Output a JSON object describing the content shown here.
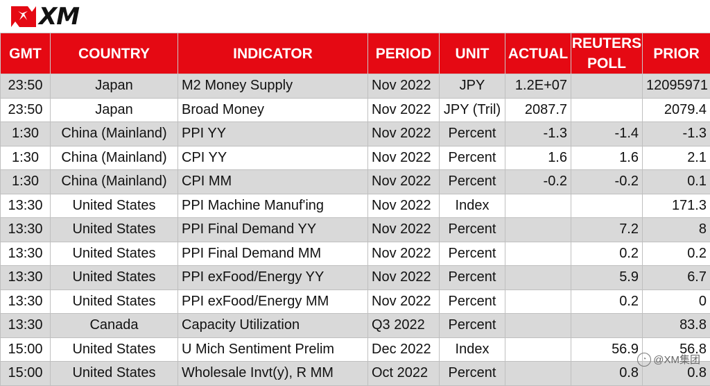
{
  "brand": {
    "logo_text": "XM",
    "logo_color": "#e50913"
  },
  "table": {
    "header_color": "#e50913",
    "shade_color": "#d9d9d9",
    "headers": {
      "gmt": "GMT",
      "country": "COUNTRY",
      "indicator": "INDICATOR",
      "period": "PERIOD",
      "unit": "UNIT",
      "actual": "ACTUAL",
      "reuters_poll_line1": "REUTERS",
      "reuters_poll_line2": "POLL",
      "prior": "PRIOR"
    },
    "rows": [
      {
        "gmt": "23:50",
        "country": "Japan",
        "indicator": "M2 Money Supply",
        "period": "Nov 2022",
        "unit": "JPY",
        "actual": "1.2E+07",
        "poll": "",
        "prior": "12095971"
      },
      {
        "gmt": "23:50",
        "country": "Japan",
        "indicator": "Broad Money",
        "period": "Nov 2022",
        "unit": "JPY (Tril)",
        "actual": "2087.7",
        "poll": "",
        "prior": "2079.4"
      },
      {
        "gmt": "1:30",
        "country": "China (Mainland)",
        "indicator": "PPI YY",
        "period": "Nov 2022",
        "unit": "Percent",
        "actual": "-1.3",
        "poll": "-1.4",
        "prior": "-1.3"
      },
      {
        "gmt": "1:30",
        "country": "China (Mainland)",
        "indicator": "CPI YY",
        "period": "Nov 2022",
        "unit": "Percent",
        "actual": "1.6",
        "poll": "1.6",
        "prior": "2.1"
      },
      {
        "gmt": "1:30",
        "country": "China (Mainland)",
        "indicator": "CPI MM",
        "period": "Nov 2022",
        "unit": "Percent",
        "actual": "-0.2",
        "poll": "-0.2",
        "prior": "0.1"
      },
      {
        "gmt": "13:30",
        "country": "United States",
        "indicator": "PPI Machine Manuf'ing",
        "period": "Nov 2022",
        "unit": "Index",
        "actual": "",
        "poll": "",
        "prior": "171.3"
      },
      {
        "gmt": "13:30",
        "country": "United States",
        "indicator": "PPI Final Demand YY",
        "period": "Nov 2022",
        "unit": "Percent",
        "actual": "",
        "poll": "7.2",
        "prior": "8"
      },
      {
        "gmt": "13:30",
        "country": "United States",
        "indicator": "PPI Final Demand MM",
        "period": "Nov 2022",
        "unit": "Percent",
        "actual": "",
        "poll": "0.2",
        "prior": "0.2"
      },
      {
        "gmt": "13:30",
        "country": "United States",
        "indicator": "PPI exFood/Energy YY",
        "period": "Nov 2022",
        "unit": "Percent",
        "actual": "",
        "poll": "5.9",
        "prior": "6.7"
      },
      {
        "gmt": "13:30",
        "country": "United States",
        "indicator": "PPI exFood/Energy MM",
        "period": "Nov 2022",
        "unit": "Percent",
        "actual": "",
        "poll": "0.2",
        "prior": "0"
      },
      {
        "gmt": "13:30",
        "country": "Canada",
        "indicator": "Capacity Utilization",
        "period": "Q3 2022",
        "unit": "Percent",
        "actual": "",
        "poll": "",
        "prior": "83.8"
      },
      {
        "gmt": "15:00",
        "country": "United States",
        "indicator": "U Mich Sentiment Prelim",
        "period": "Dec 2022",
        "unit": "Index",
        "actual": "",
        "poll": "56.9",
        "prior": "56.8"
      },
      {
        "gmt": "15:00",
        "country": "United States",
        "indicator": "Wholesale Invt(y), R MM",
        "period": "Oct 2022",
        "unit": "Percent",
        "actual": "",
        "poll": "0.8",
        "prior": "0.8"
      }
    ]
  },
  "watermark": {
    "text": "@XM集团",
    "icon": "wechat-icon"
  }
}
